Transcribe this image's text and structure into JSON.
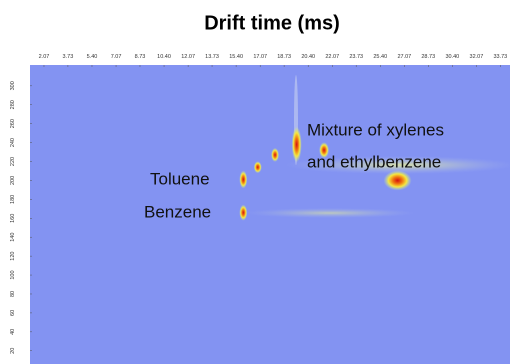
{
  "chart_data": {
    "type": "heatmap",
    "title": "Drift time (ms)",
    "xlim": [
      1.1,
      34.4
    ],
    "ylim": [
      6,
      322
    ],
    "xticks": [
      2.07,
      3.73,
      {
        "value": 5.4,
        "label": "5.40"
      },
      7.07,
      8.73,
      {
        "value": 10.4,
        "label": "10.40"
      },
      12.07,
      13.73,
      {
        "value": 15.4,
        "label": "15.40"
      },
      17.07,
      18.73,
      {
        "value": 20.4,
        "label": "20.40"
      },
      22.07,
      23.73,
      {
        "value": 25.4,
        "label": "25.40"
      },
      27.07,
      28.73,
      {
        "value": 30.4,
        "label": "30.40"
      },
      32.07,
      33.73
    ],
    "yticks": [
      300,
      280,
      260,
      240,
      220,
      200,
      180,
      160,
      140,
      120,
      100,
      80,
      60,
      40,
      20
    ],
    "background": "#8393f2",
    "spots": [
      {
        "x": 15.9,
        "y": 201
      },
      {
        "x": 15.9,
        "y": 166
      },
      {
        "x": 16.9,
        "y": 214
      },
      {
        "x": 18.1,
        "y": 227
      },
      {
        "x": 19.6,
        "y": 238
      },
      {
        "x": 21.5,
        "y": 232
      },
      {
        "x": 26.6,
        "y": 200
      }
    ],
    "annotations": [
      "Toluene",
      "Benzene",
      "Mixture of xylenes",
      "and ethylbenzene"
    ]
  }
}
